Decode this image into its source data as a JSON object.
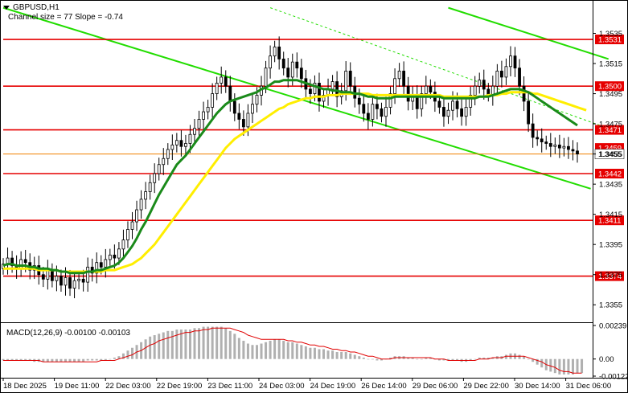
{
  "header": {
    "symbol": "GBPUSD,H1",
    "channel_info": "Channel size = 77 Slope = -0.74",
    "menu_icon": "triangle-down-icon"
  },
  "macd": {
    "label": "MACD(12,26,9) -0.00100 -0.00103",
    "axis_ticks": [
      {
        "value": 0.00239,
        "label": "0.00239"
      },
      {
        "value": 0.0,
        "label": "0.00"
      },
      {
        "value": -0.00122,
        "label": "-0.00122"
      }
    ]
  },
  "chart_data": {
    "type": "candlestick",
    "y_axis": {
      "min": 1.3345,
      "max": 1.3555,
      "ticks": [
        {
          "value": 1.3535,
          "label": "1.3535"
        },
        {
          "value": 1.3515,
          "label": "1.3515"
        },
        {
          "value": 1.3495,
          "label": "1.3495"
        },
        {
          "value": 1.3475,
          "label": "1.3475"
        },
        {
          "value": 1.3455,
          "label": "1.3455"
        },
        {
          "value": 1.3435,
          "label": "1.3435"
        },
        {
          "value": 1.3415,
          "label": "1.3415"
        },
        {
          "value": 1.3395,
          "label": "1.3395"
        },
        {
          "value": 1.3375,
          "label": "1.3375"
        },
        {
          "value": 1.3355,
          "label": "1.3355"
        }
      ]
    },
    "x_axis": {
      "labels": [
        "18 Dec 2025",
        "19 Dec 11:00",
        "22 Dec 03:00",
        "22 Dec 19:00",
        "23 Dec 11:00",
        "24 Dec 03:00",
        "24 Dec 19:00",
        "26 Dec 14:00",
        "29 Dec 06:00",
        "29 Dec 22:00",
        "30 Dec 14:00",
        "31 Dec 06:00"
      ]
    },
    "levels": [
      {
        "value": 1.3531,
        "label": "1.3531",
        "color": "#e60000"
      },
      {
        "value": 1.35,
        "label": "1.3500",
        "color": "#e60000"
      },
      {
        "value": 1.3471,
        "label": "1.3471",
        "color": "#e60000"
      },
      {
        "value": 1.3442,
        "label": "1.3442",
        "color": "#e60000"
      },
      {
        "value": 1.3411,
        "label": "1.3411",
        "color": "#e60000"
      },
      {
        "value": 1.3374,
        "label": "1.3374",
        "color": "#e60000"
      }
    ],
    "current_price": {
      "value": 1.3455,
      "label": "1.3455",
      "color": "#f08000"
    },
    "hidden_price": {
      "value": 1.3459,
      "label": "1.3459"
    },
    "closes": [
      1.3382,
      1.3386,
      1.3381,
      1.3379,
      1.3385,
      1.3383,
      1.3378,
      1.3381,
      1.3375,
      1.3372,
      1.3378,
      1.3371,
      1.3374,
      1.3368,
      1.3373,
      1.3366,
      1.3371,
      1.3372,
      1.337,
      1.338,
      1.3376,
      1.3383,
      1.338,
      1.3385,
      1.3388,
      1.3386,
      1.3392,
      1.3398,
      1.3405,
      1.341,
      1.3418,
      1.3425,
      1.343,
      1.3436,
      1.3442,
      1.3448,
      1.3452,
      1.3458,
      1.3461,
      1.3464,
      1.346,
      1.3462,
      1.3468,
      1.3472,
      1.3478,
      1.3483,
      1.3486,
      1.3495,
      1.3502,
      1.3506,
      1.35,
      1.349,
      1.3482,
      1.3478,
      1.3473,
      1.3482,
      1.3488,
      1.3494,
      1.35,
      1.3512,
      1.352,
      1.3526,
      1.3518,
      1.3512,
      1.3506,
      1.3516,
      1.3512,
      1.3505,
      1.3498,
      1.3495,
      1.3502,
      1.349,
      1.3494,
      1.3498,
      1.3503,
      1.3493,
      1.3497,
      1.351,
      1.35,
      1.3492,
      1.3488,
      1.3482,
      1.3478,
      1.3488,
      1.3485,
      1.348,
      1.3486,
      1.3495,
      1.3505,
      1.351,
      1.35,
      1.349,
      1.3494,
      1.3485,
      1.3495,
      1.35,
      1.3496,
      1.349,
      1.3486,
      1.348,
      1.3484,
      1.349,
      1.3485,
      1.348,
      1.3486,
      1.3494,
      1.35,
      1.3504,
      1.3498,
      1.3494,
      1.35,
      1.351,
      1.3506,
      1.3513,
      1.352,
      1.3512,
      1.35,
      1.349,
      1.3475,
      1.3466,
      1.3465,
      1.3463,
      1.3462,
      1.346,
      1.3461,
      1.3459,
      1.346,
      1.3458,
      1.3457,
      1.3455
    ],
    "ma_green": [
      1.3381,
      1.3382,
      1.3382,
      1.3381,
      1.3381,
      1.3381,
      1.338,
      1.338,
      1.3379,
      1.3379,
      1.3379,
      1.3378,
      1.3378,
      1.3377,
      1.3377,
      1.3376,
      1.3376,
      1.3376,
      1.3376,
      1.3377,
      1.3377,
      1.3378,
      1.3378,
      1.3379,
      1.338,
      1.3381,
      1.3383,
      1.3386,
      1.339,
      1.3394,
      1.3399,
      1.3405,
      1.341,
      1.3416,
      1.3422,
      1.3428,
      1.3433,
      1.3438,
      1.3443,
      1.3448,
      1.3451,
      1.3454,
      1.3458,
      1.3462,
      1.3466,
      1.347,
      1.3474,
      1.3478,
      1.3482,
      1.3485,
      1.3488,
      1.349,
      1.3491,
      1.3492,
      1.3493,
      1.3494,
      1.3495,
      1.3496,
      1.3498,
      1.3499,
      1.3501,
      1.3503,
      1.3503,
      1.3504,
      1.3504,
      1.3504,
      1.3504,
      1.3503,
      1.3502,
      1.3501,
      1.35,
      1.3499,
      1.3498,
      1.3498,
      1.3497,
      1.3497,
      1.3496,
      1.3496,
      1.3496,
      1.3495,
      1.3495,
      1.3494,
      1.3493,
      1.3493,
      1.3492,
      1.3492,
      1.3492,
      1.3492,
      1.3493,
      1.3493,
      1.3493,
      1.3493,
      1.3493,
      1.3493,
      1.3493,
      1.3493,
      1.3493,
      1.3493,
      1.3493,
      1.3492,
      1.3492,
      1.3492,
      1.3492,
      1.3492,
      1.3492,
      1.3492,
      1.3492,
      1.3493,
      1.3493,
      1.3493,
      1.3494,
      1.3495,
      1.3496,
      1.3497,
      1.3498,
      1.3498,
      1.3498,
      1.3497,
      1.3496,
      1.3494,
      1.3492,
      1.349,
      1.3488,
      1.3486,
      1.3484,
      1.3482,
      1.348,
      1.3478,
      1.3476,
      1.3474
    ],
    "ma_yellow": [
      1.3379,
      1.3379,
      1.3379,
      1.3379,
      1.3379,
      1.3379,
      1.3379,
      1.3379,
      1.3378,
      1.3378,
      1.3378,
      1.3378,
      1.3378,
      1.3377,
      1.3377,
      1.3377,
      1.3377,
      1.3377,
      1.3377,
      1.3377,
      1.3377,
      1.3377,
      1.3377,
      1.3378,
      1.3378,
      1.3378,
      1.3379,
      1.338,
      1.3381,
      1.3382,
      1.3384,
      1.3386,
      1.3389,
      1.3392,
      1.3395,
      1.3399,
      1.3403,
      1.3407,
      1.3411,
      1.3415,
      1.3419,
      1.3423,
      1.3427,
      1.3431,
      1.3435,
      1.3439,
      1.3443,
      1.3447,
      1.3451,
      1.3455,
      1.3459,
      1.3462,
      1.3465,
      1.3467,
      1.3469,
      1.3471,
      1.3473,
      1.3475,
      1.3477,
      1.3479,
      1.3481,
      1.3483,
      1.3485,
      1.3486,
      1.3488,
      1.3489,
      1.349,
      1.3491,
      1.3492,
      1.3492,
      1.3493,
      1.3493,
      1.3493,
      1.3494,
      1.3494,
      1.3494,
      1.3495,
      1.3495,
      1.3495,
      1.3495,
      1.3495,
      1.3495,
      1.3495,
      1.3494,
      1.3494,
      1.3494,
      1.3494,
      1.3494,
      1.3494,
      1.3494,
      1.3494,
      1.3494,
      1.3494,
      1.3494,
      1.3494,
      1.3494,
      1.3494,
      1.3494,
      1.3494,
      1.3493,
      1.3493,
      1.3493,
      1.3493,
      1.3493,
      1.3493,
      1.3493,
      1.3493,
      1.3493,
      1.3493,
      1.3494,
      1.3494,
      1.3494,
      1.3495,
      1.3495,
      1.3496,
      1.3496,
      1.3496,
      1.3496,
      1.3496,
      1.3495,
      1.3495,
      1.3494,
      1.3493,
      1.3492,
      1.3491,
      1.349,
      1.3489,
      1.3488,
      1.3487,
      1.3486,
      1.3485,
      1.3484
    ],
    "channel_lower": {
      "start": [
        0,
        1.3552
      ],
      "end": [
        132,
        1.3432
      ]
    },
    "channel_upper": {
      "start": [
        100,
        1.3552
      ],
      "end": [
        136,
        1.3518
      ]
    },
    "channel_mid": {
      "start": [
        60,
        1.3552
      ],
      "end": [
        136,
        1.3472
      ]
    },
    "macd_histogram": [
      -0.0001,
      -0.0001,
      -0.0001,
      -0.0001,
      -0.0001,
      -0.0001,
      -0.0001,
      -0.0002,
      -0.0002,
      -0.0002,
      -0.0002,
      -0.0002,
      -0.0002,
      -0.0002,
      -0.0002,
      -0.0002,
      -0.0002,
      -0.0002,
      -0.0002,
      -0.0001,
      -0.0001,
      -0.0001,
      -0.0001,
      -0.0001,
      0.0,
      0.0001,
      0.0002,
      0.0004,
      0.0006,
      0.0008,
      0.001,
      0.0012,
      0.0014,
      0.0016,
      0.0017,
      0.0018,
      0.0019,
      0.002,
      0.002,
      0.0021,
      0.0021,
      0.0021,
      0.0021,
      0.0022,
      0.0022,
      0.0023,
      0.0023,
      0.0023,
      0.0023,
      0.0023,
      0.0022,
      0.002,
      0.0018,
      0.0015,
      0.0013,
      0.0011,
      0.001,
      0.001,
      0.0011,
      0.0012,
      0.0013,
      0.0014,
      0.0014,
      0.0013,
      0.0012,
      0.0012,
      0.0011,
      0.001,
      0.0009,
      0.0008,
      0.0008,
      0.0007,
      0.0007,
      0.0006,
      0.0006,
      0.0005,
      0.0005,
      0.0005,
      0.0004,
      0.0003,
      0.0002,
      0.0001,
      0.0,
      0.0,
      -0.0001,
      -0.0001,
      0.0,
      0.0001,
      0.0002,
      0.0002,
      0.0002,
      0.0001,
      0.0001,
      0.0,
      0.0,
      0.0001,
      0.0001,
      0.0,
      -0.0001,
      -0.0001,
      -0.0001,
      -0.0001,
      -0.0001,
      -0.0002,
      -0.0002,
      -0.0001,
      0.0,
      0.0001,
      0.0001,
      0.0001,
      0.0001,
      0.0002,
      0.0002,
      0.0003,
      0.0004,
      0.0004,
      0.0003,
      0.0002,
      0.0,
      -0.0002,
      -0.0004,
      -0.0006,
      -0.0008,
      -0.0009,
      -0.001,
      -0.0011,
      -0.0011,
      -0.0011,
      -0.0011,
      -0.001,
      -0.001
    ],
    "macd_signal": [
      -0.0001,
      -0.0001,
      -0.0001,
      -0.0001,
      -0.0001,
      -0.0001,
      -0.0001,
      -0.0001,
      -0.0001,
      -0.0002,
      -0.0002,
      -0.0002,
      -0.0002,
      -0.0002,
      -0.0002,
      -0.0002,
      -0.0002,
      -0.0002,
      -0.0002,
      -0.0002,
      -0.0002,
      -0.0002,
      -0.0001,
      -0.0001,
      -0.0001,
      -0.0001,
      0.0,
      0.0001,
      0.0002,
      0.0003,
      0.0005,
      0.0006,
      0.0008,
      0.001,
      0.0011,
      0.0013,
      0.0014,
      0.0015,
      0.0016,
      0.0017,
      0.0018,
      0.0019,
      0.0019,
      0.002,
      0.002,
      0.0021,
      0.0021,
      0.0022,
      0.0022,
      0.0022,
      0.0022,
      0.0022,
      0.0021,
      0.002,
      0.0019,
      0.0017,
      0.0016,
      0.0015,
      0.0014,
      0.0014,
      0.0014,
      0.0014,
      0.0014,
      0.0014,
      0.0013,
      0.0013,
      0.0012,
      0.0012,
      0.0011,
      0.001,
      0.001,
      0.0009,
      0.0009,
      0.0008,
      0.0007,
      0.0007,
      0.0006,
      0.0006,
      0.0005,
      0.0005,
      0.0004,
      0.0003,
      0.0002,
      0.0002,
      0.0001,
      0.0,
      0.0,
      0.0,
      0.0001,
      0.0001,
      0.0001,
      0.0001,
      0.0001,
      0.0001,
      0.0001,
      0.0001,
      0.0001,
      0.0,
      0.0,
      0.0,
      -0.0001,
      -0.0001,
      -0.0001,
      -0.0001,
      -0.0001,
      -0.0001,
      -0.0001,
      0.0,
      0.0,
      0.0,
      0.0001,
      0.0001,
      0.0001,
      0.0002,
      0.0002,
      0.0002,
      0.0002,
      0.0002,
      0.0001,
      0.0,
      -0.0001,
      -0.0002,
      -0.0004,
      -0.0005,
      -0.0006,
      -0.0008,
      -0.0009,
      -0.0009,
      -0.001,
      -0.001,
      -0.001
    ]
  }
}
